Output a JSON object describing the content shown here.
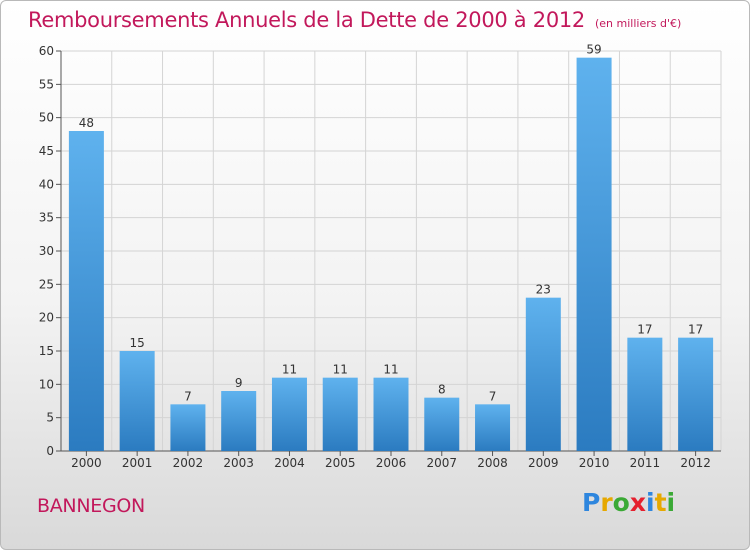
{
  "header": {
    "title": "Remboursements Annuels de la Dette de 2000 à 2012",
    "unit": "(en milliers d'€)"
  },
  "footer": {
    "commune": "BANNEGON",
    "logo_parts": [
      "P",
      "r",
      "o",
      "x",
      "i",
      "t",
      "i"
    ]
  },
  "colors": {
    "title": "#c2185b",
    "bar_top": "#5fb2ee",
    "bar_bottom": "#2b7bc0"
  },
  "chart_data": {
    "type": "bar",
    "title": "Remboursements Annuels de la Dette de 2000 à 2012",
    "categories": [
      "2000",
      "2001",
      "2002",
      "2003",
      "2004",
      "2005",
      "2006",
      "2007",
      "2008",
      "2009",
      "2010",
      "2011",
      "2012"
    ],
    "values": [
      48,
      15,
      7,
      9,
      11,
      11,
      11,
      8,
      7,
      23,
      59,
      17,
      17
    ],
    "ylim": [
      0,
      60
    ],
    "yticks": [
      0,
      5,
      10,
      15,
      20,
      25,
      30,
      35,
      40,
      45,
      50,
      55,
      60
    ],
    "grid": true,
    "legend": "none"
  }
}
